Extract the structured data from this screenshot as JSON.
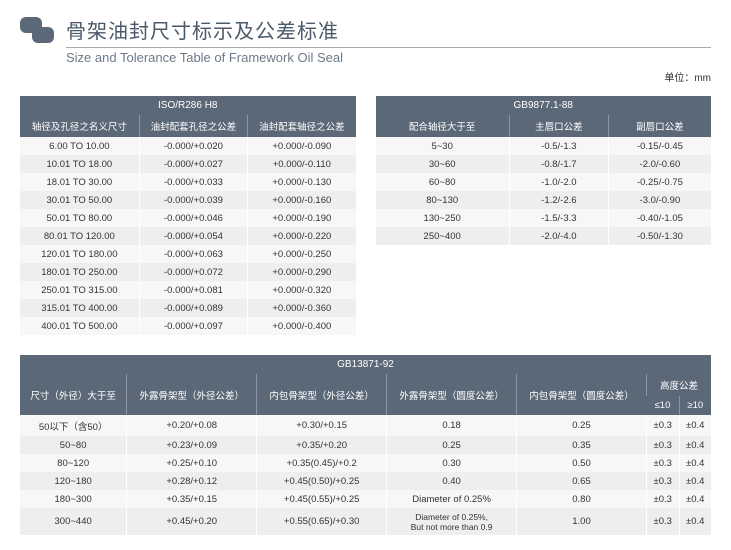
{
  "header": {
    "title_cn": "骨架油封尺寸标示及公差标准",
    "title_en": "Size and Tolerance Table of Framework Oil Seal",
    "unit": "单位：mm"
  },
  "table_iso": {
    "top_header": "ISO/R286 H8",
    "columns": [
      "轴径及孔径之名义尺寸",
      "油封配套孔径之公差",
      "油封配套轴径之公差"
    ],
    "rows": [
      [
        "6.00 TO 10.00",
        "-0.000/+0.020",
        "+0.000/-0.090"
      ],
      [
        "10.01 TO 18.00",
        "-0.000/+0.027",
        "+0.000/-0.110"
      ],
      [
        "18.01 TO 30.00",
        "-0.000/+0.033",
        "+0.000/-0.130"
      ],
      [
        "30.01 TO 50.00",
        "-0.000/+0.039",
        "+0.000/-0.160"
      ],
      [
        "50.01 TO 80.00",
        "-0.000/+0.046",
        "+0.000/-0.190"
      ],
      [
        "80.01 TO 120.00",
        "-0.000/+0.054",
        "+0.000/-0.220"
      ],
      [
        "120.01 TO 180.00",
        "-0.000/+0.063",
        "+0.000/-0.250"
      ],
      [
        "180.01 TO 250.00",
        "-0.000/+0.072",
        "+0.000/-0.290"
      ],
      [
        "250.01 TO 315.00",
        "-0.000/+0.081",
        "+0.000/-0.320"
      ],
      [
        "315.01 TO 400.00",
        "-0.000/+0.089",
        "+0.000/-0.360"
      ],
      [
        "400.01 TO 500.00",
        "-0.000/+0.097",
        "+0.000/-0.400"
      ]
    ]
  },
  "table_gb9877": {
    "top_header": "GB9877.1-88",
    "columns": [
      "配合轴径大于至",
      "主唇口公差",
      "副唇口公差"
    ],
    "rows": [
      [
        "5~30",
        "-0.5/-1.3",
        "-0.15/-0.45"
      ],
      [
        "30~60",
        "-0.8/-1.7",
        "-2.0/-0.60"
      ],
      [
        "60~80",
        "-1.0/-2.0",
        "-0.25/-0.75"
      ],
      [
        "80~130",
        "-1.2/-2.6",
        "-3.0/-0.90"
      ],
      [
        "130~250",
        "-1.5/-3.3",
        "-0.40/-1.05"
      ],
      [
        "250~400",
        "-2.0/-4.0",
        "-0.50/-1.30"
      ]
    ]
  },
  "table_gb13871": {
    "top_header": "GB13871-92",
    "height_tol_label": "高度公差",
    "columns": [
      "尺寸（外径）大于至",
      "外露骨架型（外径公差）",
      "内包骨架型（外径公差）",
      "外露骨架型（圆度公差）",
      "内包骨架型（圆度公差）",
      "≤10",
      "≥10"
    ],
    "rows": [
      [
        "50以下（含50）",
        "+0.20/+0.08",
        "+0.30/+0.15",
        "0.18",
        "0.25",
        "±0.3",
        "±0.4"
      ],
      [
        "50~80",
        "+0.23/+0.09",
        "+0.35/+0.20",
        "0.25",
        "0.35",
        "±0.3",
        "±0.4"
      ],
      [
        "80~120",
        "+0.25/+0.10",
        "+0.35(0.45)/+0.2",
        "0.30",
        "0.50",
        "±0.3",
        "±0.4"
      ],
      [
        "120~180",
        "+0.28/+0.12",
        "+0.45(0.50)/+0.25",
        "0.40",
        "0.65",
        "±0.3",
        "±0.4"
      ],
      [
        "180~300",
        "+0.35/+0.15",
        "+0.45(0.55)/+0.25",
        "Diameter of 0.25%",
        "0.80",
        "±0.3",
        "±0.4"
      ],
      [
        "300~440",
        "+0.45/+0.20",
        "+0.55(0.65)/+0.30",
        "Diameter of 0.25%,\nBut not more than 0.9",
        "1.00",
        "±0.3",
        "±0.4"
      ]
    ]
  },
  "colors": {
    "header_bg": "#5b6878",
    "row_odd": "#f7f7f7",
    "row_even": "#eceef0",
    "title_color": "#4a5a6a"
  }
}
